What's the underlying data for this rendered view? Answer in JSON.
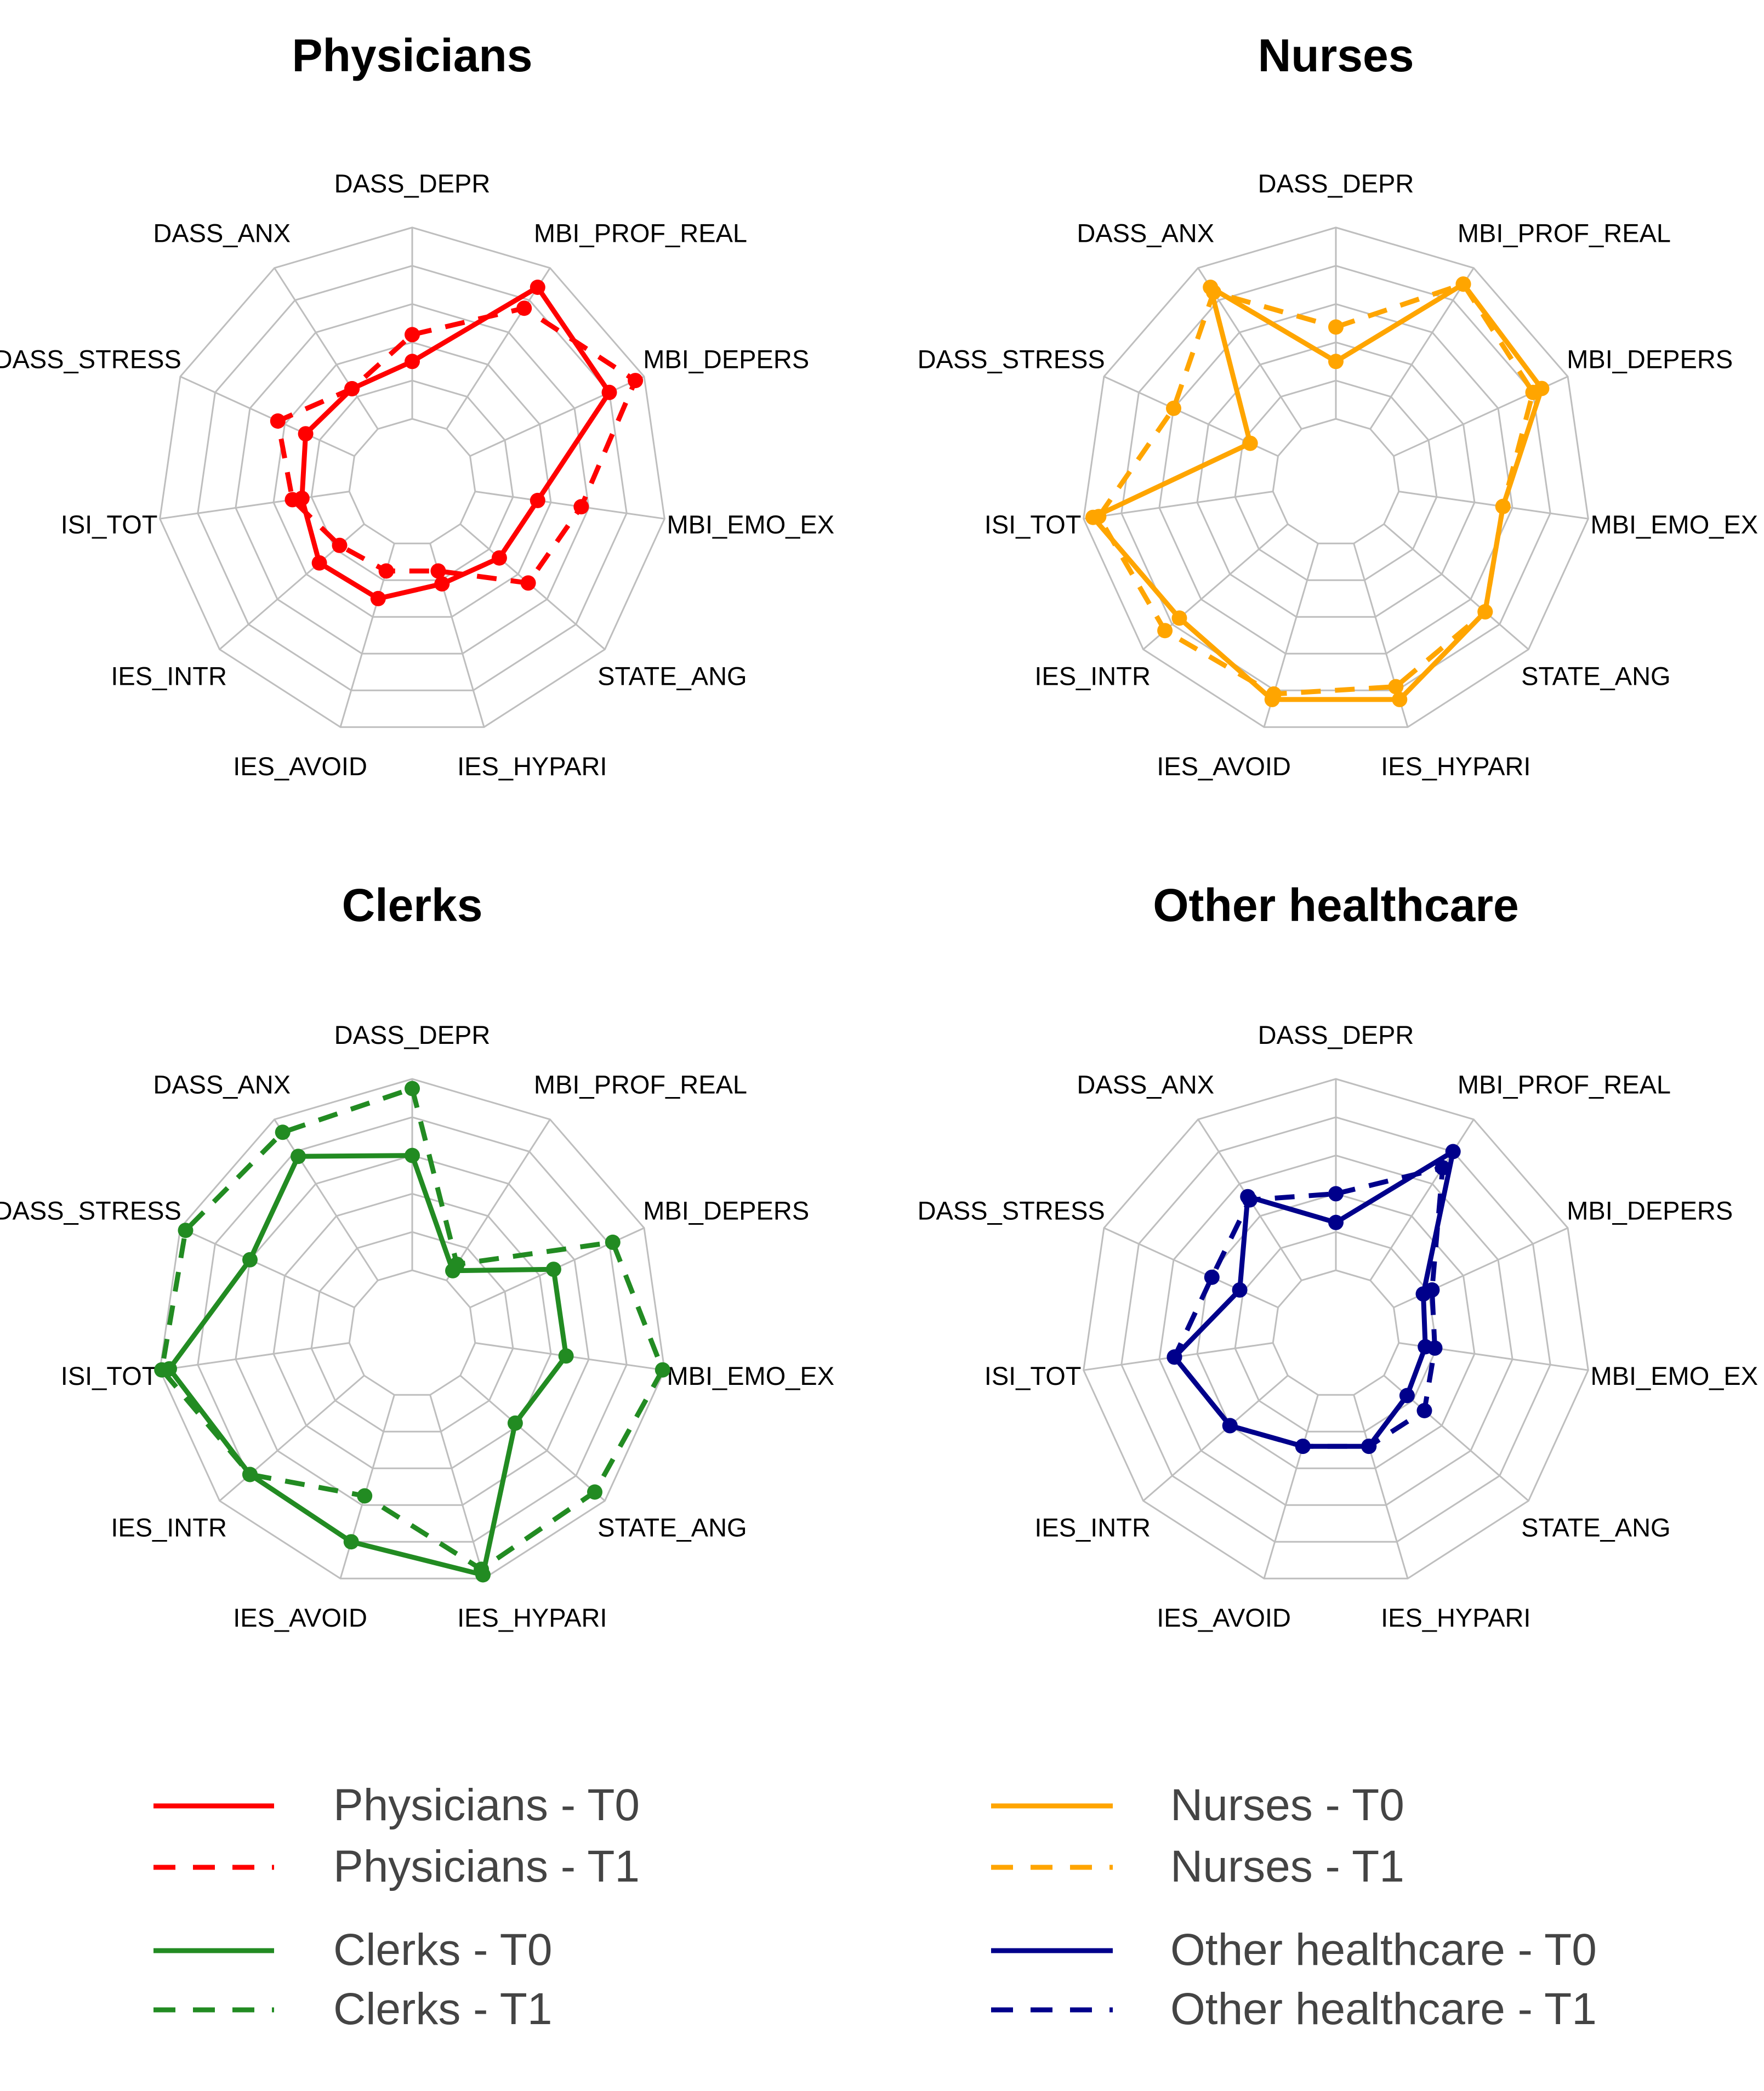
{
  "chart_data": [
    {
      "type": "radar",
      "title": "Physicians",
      "axes": [
        "DASS_DEPR",
        "MBI_PROF_REAL",
        "MBI_DEPERS",
        "MBI_EMO_EX",
        "STATE_ANG",
        "IES_HYPARI",
        "IES_AVOID",
        "IES_INTR",
        "ISI_TOT",
        "DASS_STRESS",
        "DASS_ANX"
      ],
      "range": [
        0,
        1
      ],
      "series": [
        {
          "name": "Physicians - T0",
          "color": "#ff0000",
          "dash": "solid",
          "values": [
            0.3,
            0.88,
            0.8,
            0.33,
            0.27,
            0.22,
            0.3,
            0.31,
            0.25,
            0.28,
            0.25
          ]
        },
        {
          "name": "Physicians - T1",
          "color": "#ff0000",
          "dash": "dashed",
          "values": [
            0.44,
            0.75,
            0.95,
            0.56,
            0.47,
            0.15,
            0.15,
            0.17,
            0.3,
            0.44,
            0.25
          ]
        }
      ]
    },
    {
      "type": "radar",
      "title": "Nurses",
      "axes": [
        "DASS_DEPR",
        "MBI_PROF_REAL",
        "MBI_DEPERS",
        "MBI_EMO_EX",
        "STATE_ANG",
        "IES_HYPARI",
        "IES_AVOID",
        "IES_INTR",
        "ISI_TOT",
        "DASS_STRESS",
        "DASS_ANX"
      ],
      "range": [
        0,
        1
      ],
      "series": [
        {
          "name": "Nurses - T0",
          "color": "#ffa500",
          "dash": "solid",
          "values": [
            0.3,
            0.9,
            0.85,
            0.55,
            0.7,
            0.85,
            0.85,
            0.75,
            0.95,
            0.16,
            0.88
          ]
        },
        {
          "name": "Nurses - T1",
          "color": "#ffa500",
          "dash": "dashed",
          "values": [
            0.48,
            0.9,
            0.8,
            0.55,
            0.7,
            0.78,
            0.82,
            0.85,
            0.92,
            0.6,
            0.85
          ]
        }
      ]
    },
    {
      "type": "radar",
      "title": "Clerks",
      "axes": [
        "DASS_DEPR",
        "MBI_PROF_REAL",
        "MBI_DEPERS",
        "MBI_EMO_EX",
        "STATE_ANG",
        "IES_HYPARI",
        "IES_AVOID",
        "IES_INTR",
        "ISI_TOT",
        "DASS_STRESS",
        "DASS_ANX"
      ],
      "range": [
        0,
        1
      ],
      "series": [
        {
          "name": "Clerks - T0",
          "color": "#228b22",
          "dash": "solid",
          "values": [
            0.6,
            0.06,
            0.48,
            0.48,
            0.38,
            0.98,
            0.8,
            0.79,
            0.95,
            0.6,
            0.77
          ]
        },
        {
          "name": "Clerks - T1",
          "color": "#228b22",
          "dash": "dashed",
          "values": [
            0.95,
            0.1,
            0.82,
            0.99,
            0.93,
            0.95,
            0.55,
            0.79,
            0.99,
            0.97,
            0.92
          ]
        }
      ]
    },
    {
      "type": "radar",
      "title": "Other healthcare",
      "axes": [
        "DASS_DEPR",
        "MBI_PROF_REAL",
        "MBI_DEPERS",
        "MBI_EMO_EX",
        "STATE_ANG",
        "IES_HYPARI",
        "IES_AVOID",
        "IES_INTR",
        "ISI_TOT",
        "DASS_STRESS",
        "DASS_ANX"
      ],
      "range": [
        0,
        1
      ],
      "series": [
        {
          "name": "Other healthcare - T0",
          "color": "#00008b",
          "dash": "solid",
          "values": [
            0.25,
            0.8,
            0.17,
            0.14,
            0.16,
            0.28,
            0.28,
            0.4,
            0.52,
            0.22,
            0.52
          ]
        },
        {
          "name": "Other healthcare - T1",
          "color": "#00008b",
          "dash": "dashed",
          "values": [
            0.4,
            0.7,
            0.22,
            0.19,
            0.28,
            0.28,
            0.28,
            0.4,
            0.52,
            0.38,
            0.5
          ]
        }
      ]
    }
  ],
  "legend": [
    {
      "label": "Physicians - T0",
      "color": "#ff0000",
      "dash": "solid"
    },
    {
      "label": "Physicians - T1",
      "color": "#ff0000",
      "dash": "dashed"
    },
    {
      "label": "Clerks - T0",
      "color": "#228b22",
      "dash": "solid"
    },
    {
      "label": "Clerks - T1",
      "color": "#228b22",
      "dash": "dashed"
    },
    {
      "label": "Nurses - T0",
      "color": "#ffa500",
      "dash": "solid"
    },
    {
      "label": "Nurses - T1",
      "color": "#ffa500",
      "dash": "dashed"
    },
    {
      "label": "Other healthcare - T0",
      "color": "#00008b",
      "dash": "solid"
    },
    {
      "label": "Other healthcare - T1",
      "color": "#00008b",
      "dash": "dashed"
    }
  ],
  "grid_color": "#bebebe"
}
